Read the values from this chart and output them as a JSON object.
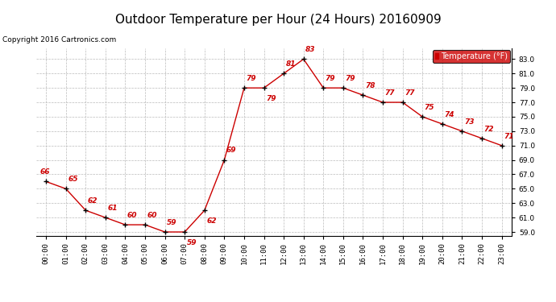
{
  "title": "Outdoor Temperature per Hour (24 Hours) 20160909",
  "copyright_text": "Copyright 2016 Cartronics.com",
  "legend_label": "Temperature (°F)",
  "hours": [
    0,
    1,
    2,
    3,
    4,
    5,
    6,
    7,
    8,
    9,
    10,
    11,
    12,
    13,
    14,
    15,
    16,
    17,
    18,
    19,
    20,
    21,
    22,
    23
  ],
  "temps": [
    66,
    65,
    62,
    61,
    60,
    60,
    59,
    59,
    62,
    69,
    79,
    79,
    81,
    83,
    79,
    79,
    78,
    77,
    77,
    75,
    74,
    73,
    72,
    71
  ],
  "hour_labels": [
    "00:00",
    "01:00",
    "02:00",
    "03:00",
    "04:00",
    "05:00",
    "06:00",
    "07:00",
    "08:00",
    "09:00",
    "10:00",
    "11:00",
    "12:00",
    "13:00",
    "14:00",
    "15:00",
    "16:00",
    "17:00",
    "18:00",
    "19:00",
    "20:00",
    "21:00",
    "22:00",
    "23:00"
  ],
  "ylim": [
    58.5,
    84.5
  ],
  "yticks": [
    59.0,
    61.0,
    63.0,
    65.0,
    67.0,
    69.0,
    71.0,
    73.0,
    75.0,
    77.0,
    79.0,
    81.0,
    83.0
  ],
  "line_color": "#cc0000",
  "marker_color": "#000000",
  "data_label_color": "#cc0000",
  "background_color": "#ffffff",
  "grid_color": "#bbbbbb",
  "title_fontsize": 11,
  "tick_fontsize": 6.5,
  "annot_fontsize": 6.5,
  "legend_bg": "#cc0000",
  "legend_fg": "#ffffff",
  "copyright_fontsize": 6.5
}
